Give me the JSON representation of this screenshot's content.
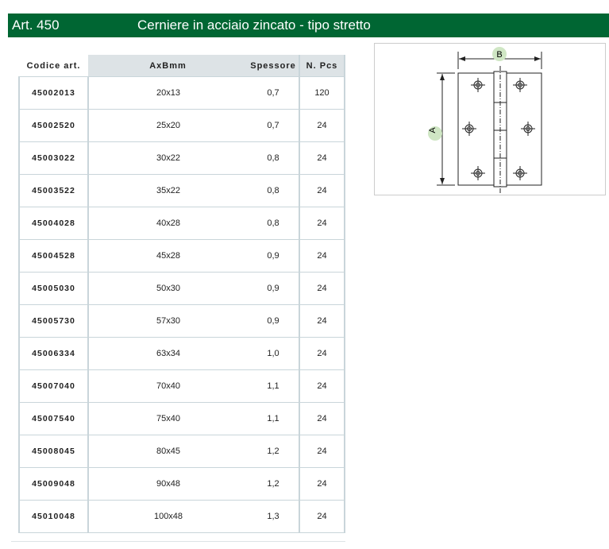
{
  "header": {
    "article": "Art. 450",
    "title": "Cerniere in acciaio zincato - tipo stretto"
  },
  "table": {
    "columns": [
      "Codice art.",
      "AxBmm",
      "Spessore",
      "N. Pcs"
    ],
    "rows": [
      [
        "45002013",
        "20x13",
        "0,7",
        "120"
      ],
      [
        "45002520",
        "25x20",
        "0,7",
        "24"
      ],
      [
        "45003022",
        "30x22",
        "0,8",
        "24"
      ],
      [
        "45003522",
        "35x22",
        "0,8",
        "24"
      ],
      [
        "45004028",
        "40x28",
        "0,8",
        "24"
      ],
      [
        "45004528",
        "45x28",
        "0,9",
        "24"
      ],
      [
        "45005030",
        "50x30",
        "0,9",
        "24"
      ],
      [
        "45005730",
        "57x30",
        "0,9",
        "24"
      ],
      [
        "45006334",
        "63x34",
        "1,0",
        "24"
      ],
      [
        "45007040",
        "70x40",
        "1,1",
        "24"
      ],
      [
        "45007540",
        "75x40",
        "1,1",
        "24"
      ],
      [
        "45008045",
        "80x45",
        "1,2",
        "24"
      ],
      [
        "45009048",
        "90x48",
        "1,2",
        "24"
      ],
      [
        "45010048",
        "100x48",
        "1,3",
        "24"
      ]
    ]
  },
  "drawing": {
    "label_a": "A",
    "label_b": "B",
    "badge_color": "#cfe6c4",
    "header_color": "#006633"
  }
}
